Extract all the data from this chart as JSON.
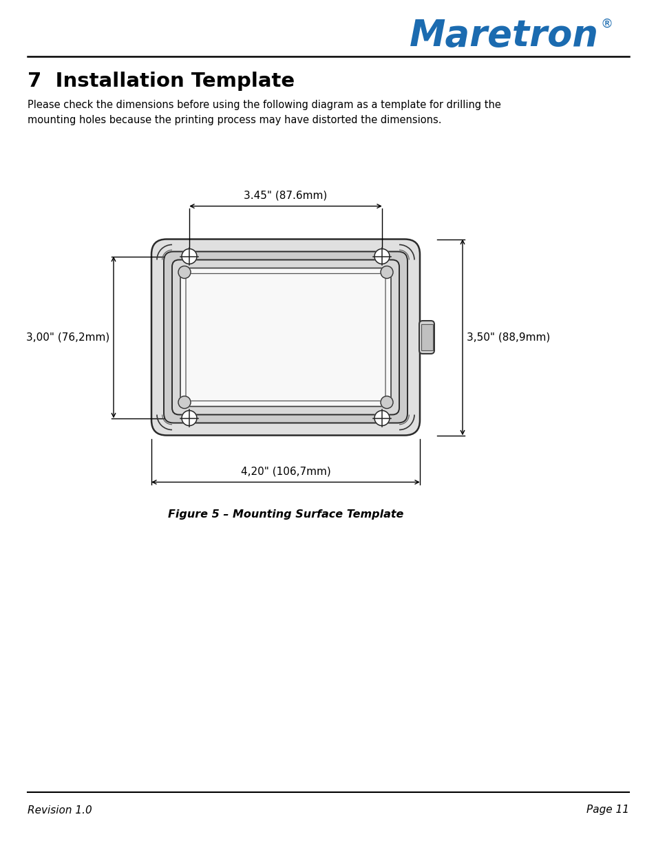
{
  "title": "7  Installation Template",
  "subtitle": "Please check the dimensions before using the following diagram as a template for drilling the\nmounting holes because the printing process may have distorted the dimensions.",
  "figure_caption": "Figure 5 – Mounting Surface Template",
  "dim_top": "3.45\" (87.6mm)",
  "dim_bottom": "4,20\" (106,7mm)",
  "dim_left": "3,00\" (76,2mm)",
  "dim_right": "3,50\" (88,9mm)",
  "footer_left": "Revision 1.0",
  "footer_right": "Page 11",
  "logo_text": "Maretron",
  "logo_reg": "®",
  "logo_color": "#1B6BB0",
  "bg_color": "#ffffff",
  "text_color": "#000000"
}
